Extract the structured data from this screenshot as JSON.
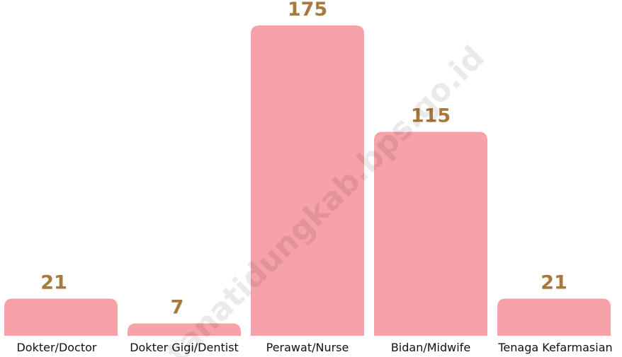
{
  "chart_data": {
    "type": "bar",
    "categories": [
      "Dokter/Doctor",
      "Dokter Gigi/Dentist",
      "Perawat/Nurse",
      "Bidan/Midwife",
      "Tenaga Kefarmasian"
    ],
    "values": [
      21,
      7,
      175,
      115,
      21
    ],
    "color": "#f7a1a8",
    "watermark": "tanatidungkab.bps.go.id"
  }
}
